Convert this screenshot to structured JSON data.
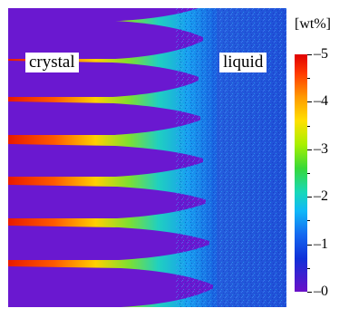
{
  "labels": {
    "crystal": "crystal",
    "liquid": "liquid"
  },
  "colorbar": {
    "unit": "[wt%]",
    "ticks": [
      {
        "value": 5,
        "label": "5"
      },
      {
        "value": 4,
        "label": "4"
      },
      {
        "value": 3,
        "label": "3"
      },
      {
        "value": 2,
        "label": "2"
      },
      {
        "value": 1,
        "label": "1"
      },
      {
        "value": 0,
        "label": "0"
      }
    ],
    "min": 0,
    "max": 5,
    "colors": [
      "#6a10c8",
      "#1030d8",
      "#1468f0",
      "#10b8f8",
      "#18d8b8",
      "#38d838",
      "#a8f000",
      "#ffe000",
      "#ff9a00",
      "#ff3a00",
      "#e00000"
    ]
  },
  "colors": {
    "crystal": "#6a18d0",
    "liquid": "#1a5fe0",
    "enriched": "#e02000"
  }
}
